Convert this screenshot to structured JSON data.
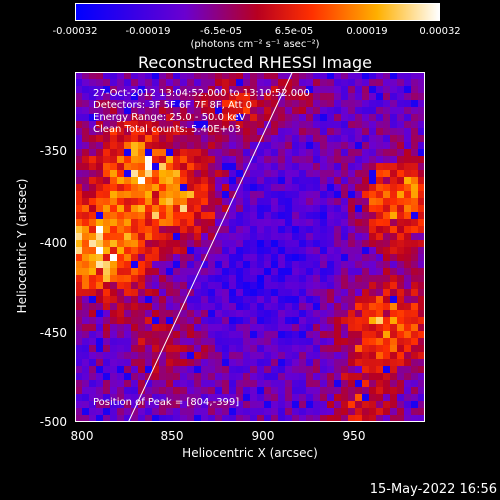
{
  "colorbar": {
    "tick_labels": [
      "-0.00032",
      "-0.00019",
      "-6.5e-05",
      "6.5e-05",
      "0.00019",
      "0.00032"
    ],
    "units_label": "(photons cm⁻² s⁻¹ asec⁻²)",
    "colors": [
      "#0000ff",
      "#6a00d0",
      "#b80020",
      "#ff3000",
      "#ffb000",
      "#ffffff"
    ]
  },
  "info": {
    "time_range": "27-Oct-2012 13:04:52.000 to 13:10:52.000",
    "detectors": "Detectors: 3F 5F 6F 7F 8F, Att 0",
    "energy_range": "Energy Range: 25.0 - 50.0 keV",
    "clean": "Clean    Total counts: 5.40E+03",
    "peak": "Position of Peak = [804,-399]"
  },
  "footer": "15-May-2022 16:56",
  "chart_data": {
    "type": "heatmap",
    "title": "Reconstructed RHESSI Image",
    "xlabel": "Heliocentric X (arcsec)",
    "ylabel": "Heliocentric Y (arcsec)",
    "xlim": [
      797,
      987
    ],
    "ylim": [
      -502,
      -312
    ],
    "x_ticks": [
      "800",
      "850",
      "900",
      "950"
    ],
    "y_ticks": [
      "-350",
      "-400",
      "-450",
      "-500"
    ],
    "peak_position": [
      804,
      -399
    ],
    "limb_line": {
      "x": [
        826,
        915
      ],
      "y": [
        -502,
        -312
      ]
    },
    "color_range": [
      -0.00032,
      0.00032
    ]
  }
}
